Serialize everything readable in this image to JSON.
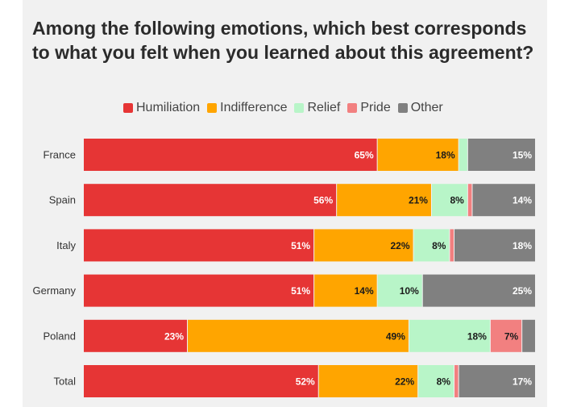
{
  "chart_data": {
    "type": "bar",
    "orientation": "horizontal",
    "stacked": true,
    "title": "Among the following emotions, which best corresponds to what you felt when you learned about this agreement?",
    "legend_position": "top",
    "categories": [
      "France",
      "Spain",
      "Italy",
      "Germany",
      "Poland",
      "Total"
    ],
    "series": [
      {
        "name": "Humiliation",
        "color": "#e63535",
        "label_color": "#ffffff",
        "values": [
          65,
          56,
          51,
          51,
          23,
          52
        ]
      },
      {
        "name": "Indifference",
        "color": "#ffa500",
        "label_color": "#1a1a1a",
        "values": [
          18,
          21,
          22,
          14,
          49,
          22
        ]
      },
      {
        "name": "Relief",
        "color": "#b8f5c8",
        "label_color": "#1a1a1a",
        "values": [
          2,
          8,
          8,
          10,
          18,
          8
        ]
      },
      {
        "name": "Pride",
        "color": "#f28080",
        "label_color": "#1a1a1a",
        "values": [
          0,
          1,
          1,
          0,
          7,
          1
        ]
      },
      {
        "name": "Other",
        "color": "#808080",
        "label_color": "#ffffff",
        "values": [
          15,
          14,
          18,
          25,
          3,
          17
        ]
      }
    ],
    "data_labels": [
      [
        "65%",
        "18%",
        "",
        "",
        "15%"
      ],
      [
        "56%",
        "21%",
        "8%",
        "",
        "14%"
      ],
      [
        "51%",
        "22%",
        "8%",
        "",
        "18%"
      ],
      [
        "51%",
        "14%",
        "10%",
        "",
        "25%"
      ],
      [
        "23%",
        "49%",
        "18%",
        "7%",
        ""
      ],
      [
        "52%",
        "22%",
        "8%",
        "",
        "17%"
      ]
    ],
    "xlim": [
      0,
      100
    ],
    "grid": false
  }
}
